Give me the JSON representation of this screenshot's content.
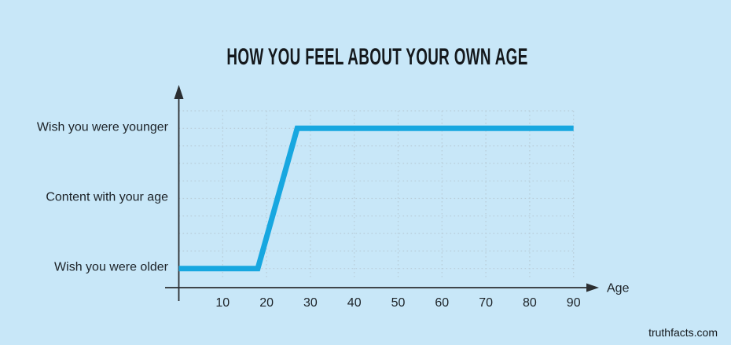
{
  "title": "HOW YOU FEEL ABOUT YOUR OWN AGE",
  "watermark": "truthfacts.com",
  "colors": {
    "background": "#c8e7f8",
    "line": "#17a7e0",
    "grid": "#b9cdd9",
    "axis": "#2b2e31",
    "text": "#1c2227"
  },
  "chart_data": {
    "type": "line",
    "title": "HOW YOU FEEL ABOUT YOUR OWN AGE",
    "xlabel": "Age",
    "x_ticks": [
      10,
      20,
      30,
      40,
      50,
      60,
      70,
      80,
      90
    ],
    "x_range": [
      0,
      90
    ],
    "grid": true,
    "y_levels": [
      {
        "label": "Wish you were older",
        "level": 0
      },
      {
        "label": "Content with your age",
        "level": 1
      },
      {
        "label": "Wish you were younger",
        "level": 2
      }
    ],
    "line_points": [
      {
        "age": 0,
        "feeling": "Wish you were older"
      },
      {
        "age": 18,
        "feeling": "Wish you were older"
      },
      {
        "age": 27,
        "feeling": "Wish you were younger"
      },
      {
        "age": 90,
        "feeling": "Wish you were younger"
      }
    ]
  }
}
